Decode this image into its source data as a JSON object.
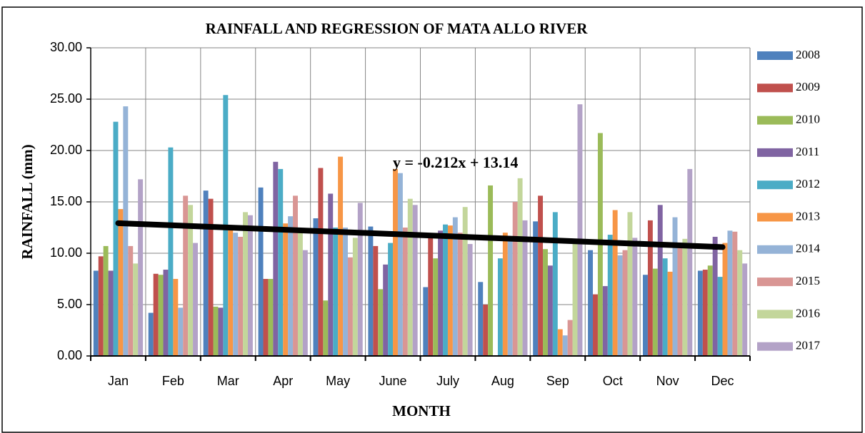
{
  "chart_data": {
    "type": "bar",
    "title": "RAINFALL AND REGRESSION OF MATA ALLO RIVER",
    "x_label": "MONTH",
    "y_label": "RAINFALL (mm)",
    "categories": [
      "Jan",
      "Feb",
      "Mar",
      "Apr",
      "May",
      "June",
      "July",
      "Aug",
      "Sep",
      "Oct",
      "Nov",
      "Dec"
    ],
    "ylim": [
      0,
      30
    ],
    "yticks": [
      {
        "value": 0,
        "label": "0.00"
      },
      {
        "value": 5,
        "label": "5.00"
      },
      {
        "value": 10,
        "label": "10.00"
      },
      {
        "value": 15,
        "label": "15.00"
      },
      {
        "value": 20,
        "label": "20.00"
      },
      {
        "value": 25,
        "label": "25.00"
      },
      {
        "value": 30,
        "label": "30.00"
      }
    ],
    "grid": true,
    "legend": "right",
    "series": [
      {
        "name": "2008",
        "color": "#4f81bd",
        "values": [
          8.3,
          4.2,
          16.1,
          16.4,
          13.4,
          12.6,
          6.7,
          7.2,
          13.1,
          10.3,
          7.9,
          8.3
        ]
      },
      {
        "name": "2009",
        "color": "#c0504d",
        "values": [
          9.7,
          8.0,
          15.3,
          7.5,
          18.3,
          10.7,
          11.5,
          5.0,
          15.6,
          6.0,
          13.2,
          8.4
        ]
      },
      {
        "name": "2010",
        "color": "#9bbb59",
        "values": [
          10.7,
          7.9,
          4.8,
          7.5,
          5.4,
          6.5,
          9.5,
          16.6,
          10.4,
          21.7,
          8.5,
          8.8
        ]
      },
      {
        "name": "2011",
        "color": "#8064a2",
        "values": [
          8.3,
          8.4,
          4.7,
          18.9,
          15.8,
          8.9,
          12.2,
          null,
          8.8,
          6.8,
          14.7,
          11.6
        ]
      },
      {
        "name": "2012",
        "color": "#4bacc6",
        "values": [
          22.8,
          20.3,
          25.4,
          18.2,
          12.5,
          11.0,
          12.8,
          9.5,
          14.0,
          11.8,
          9.5,
          7.7
        ]
      },
      {
        "name": "2013",
        "color": "#f79646",
        "values": [
          14.3,
          7.5,
          12.4,
          12.9,
          19.4,
          18.2,
          12.7,
          12.0,
          2.6,
          14.2,
          8.2,
          11.0
        ]
      },
      {
        "name": "2014",
        "color": "#95b3d7",
        "values": [
          24.3,
          4.7,
          12.0,
          13.6,
          12.5,
          17.8,
          13.5,
          11.5,
          2.0,
          9.8,
          13.5,
          12.2
        ]
      },
      {
        "name": "2015",
        "color": "#d99694",
        "values": [
          10.7,
          15.6,
          11.6,
          15.6,
          9.6,
          12.5,
          12.0,
          15.0,
          3.5,
          10.3,
          10.5,
          12.1
        ]
      },
      {
        "name": "2016",
        "color": "#c3d69b",
        "values": [
          9.0,
          14.7,
          14.0,
          12.0,
          11.5,
          15.3,
          14.5,
          17.3,
          11.0,
          14.0,
          11.4,
          10.3
        ]
      },
      {
        "name": "2017",
        "color": "#b3a2c7",
        "values": [
          17.2,
          11.0,
          13.7,
          10.3,
          14.9,
          14.7,
          10.9,
          13.2,
          24.5,
          11.5,
          18.2,
          9.0
        ]
      }
    ],
    "trendline": {
      "label": "y = -0.212x + 13.14",
      "slope": -0.212,
      "intercept": 13.14,
      "color": "#000000"
    }
  }
}
